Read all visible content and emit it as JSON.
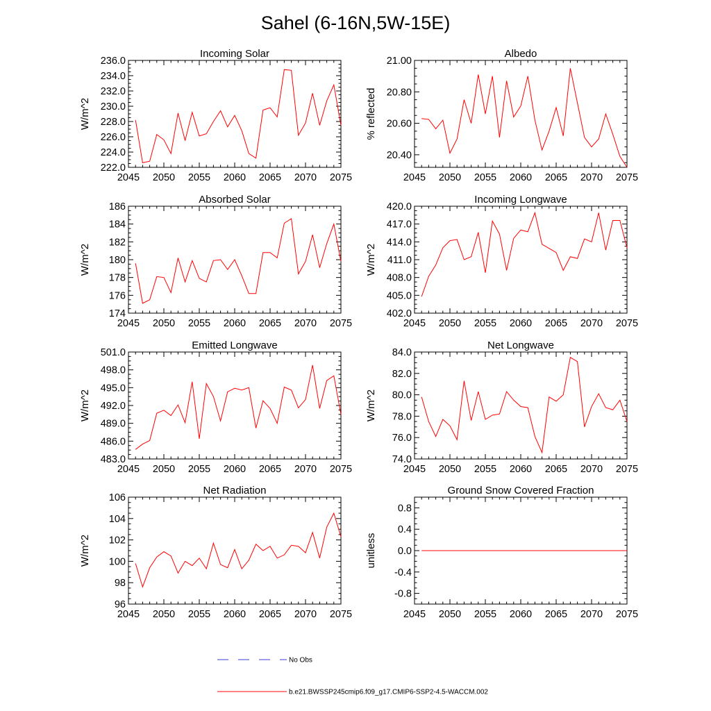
{
  "title": "Sahel (6-16N,5W-15E)",
  "colors": {
    "model": "#ff0000",
    "obs": "#3b3bd6",
    "axis": "#000000"
  },
  "legend": {
    "obs_label": "No Obs",
    "model_label": "b.e21.BWSSP245cmip6.f09_g17.CMIP6-SSP2-4.5-WACCM.002"
  },
  "chart_data": [
    {
      "type": "line",
      "title": "Incoming Solar",
      "ylabel": "W/m^2",
      "xlim": [
        2045,
        2075
      ],
      "ylim": [
        222,
        236
      ],
      "xticks": [
        2045,
        2050,
        2055,
        2060,
        2065,
        2070,
        2075
      ],
      "yticks": [
        222,
        224,
        226,
        228,
        230,
        232,
        234,
        236
      ],
      "ydecimals": 1,
      "ytick_labels": [
        "222.0",
        "224.0",
        "226.0",
        "228.0",
        "230.0",
        "232.0",
        "234.0",
        "236.0"
      ],
      "xtick_labels": [
        "2045",
        "2050",
        "2055",
        "2060",
        "2065",
        "2070",
        "2075"
      ],
      "series": [
        {
          "name": "b.e21.BWSSP245cmip6.f09_g17.CMIP6-SSP2-4.5-WACCM.002",
          "x": [
            2046,
            2047,
            2048,
            2049,
            2050,
            2051,
            2052,
            2053,
            2054,
            2055,
            2056,
            2057,
            2058,
            2059,
            2060,
            2061,
            2062,
            2063,
            2064,
            2065,
            2066,
            2067,
            2068,
            2069,
            2070,
            2071,
            2072,
            2073,
            2074,
            2075
          ],
          "values": [
            228.2,
            222.6,
            222.8,
            226.3,
            225.6,
            223.8,
            229.1,
            225.5,
            229.2,
            226.1,
            226.4,
            228.0,
            229.4,
            227.3,
            228.8,
            226.8,
            223.8,
            223.2,
            229.5,
            229.8,
            228.6,
            234.8,
            234.7,
            226.2,
            227.8,
            231.7,
            227.5,
            230.7,
            232.8,
            227.5
          ]
        }
      ]
    },
    {
      "type": "line",
      "title": "Albedo",
      "ylabel": "% reflected",
      "xlim": [
        2045,
        2075
      ],
      "ylim": [
        20.32,
        21.0
      ],
      "xticks": [
        2045,
        2050,
        2055,
        2060,
        2065,
        2070,
        2075
      ],
      "yticks": [
        20.4,
        20.6,
        20.8,
        21.0
      ],
      "ydecimals": 2,
      "ytick_labels": [
        "20.40",
        "20.60",
        "20.80",
        "21.00"
      ],
      "xtick_labels": [
        "2045",
        "2050",
        "2055",
        "2060",
        "2065",
        "2070",
        "2075"
      ],
      "series": [
        {
          "name": "b.e21.BWSSP245cmip6.f09_g17.CMIP6-SSP2-4.5-WACCM.002",
          "x": [
            2046,
            2047,
            2048,
            2049,
            2050,
            2051,
            2052,
            2053,
            2054,
            2055,
            2056,
            2057,
            2058,
            2059,
            2060,
            2061,
            2062,
            2063,
            2064,
            2065,
            2066,
            2067,
            2068,
            2069,
            2070,
            2071,
            2072,
            2073,
            2074,
            2075
          ],
          "values": [
            20.63,
            20.625,
            20.565,
            20.62,
            20.41,
            20.5,
            20.75,
            20.6,
            20.91,
            20.66,
            20.9,
            20.51,
            20.87,
            20.64,
            20.71,
            20.9,
            20.62,
            20.43,
            20.55,
            20.7,
            20.52,
            20.95,
            20.73,
            20.51,
            20.45,
            20.5,
            20.66,
            20.53,
            20.39,
            20.32
          ]
        }
      ]
    },
    {
      "type": "line",
      "title": "Absorbed Solar",
      "ylabel": "W/m^2",
      "xlim": [
        2045,
        2075
      ],
      "ylim": [
        174,
        186
      ],
      "xticks": [
        2045,
        2050,
        2055,
        2060,
        2065,
        2070,
        2075
      ],
      "yticks": [
        174,
        176,
        178,
        180,
        182,
        184,
        186
      ],
      "ydecimals": 0,
      "ytick_labels": [
        "174",
        "176",
        "178",
        "180",
        "182",
        "184",
        "186"
      ],
      "xtick_labels": [
        "2045",
        "2050",
        "2055",
        "2060",
        "2065",
        "2070",
        "2075"
      ],
      "series": [
        {
          "name": "b.e21.BWSSP245cmip6.f09_g17.CMIP6-SSP2-4.5-WACCM.002",
          "x": [
            2046,
            2047,
            2048,
            2049,
            2050,
            2051,
            2052,
            2053,
            2054,
            2055,
            2056,
            2057,
            2058,
            2059,
            2060,
            2061,
            2062,
            2063,
            2064,
            2065,
            2066,
            2067,
            2068,
            2069,
            2070,
            2071,
            2072,
            2073,
            2074,
            2075
          ],
          "values": [
            179.6,
            175.1,
            175.5,
            178.1,
            178.0,
            176.3,
            180.2,
            177.5,
            179.9,
            177.9,
            177.5,
            179.9,
            180.0,
            178.9,
            180.0,
            178.2,
            176.2,
            176.2,
            180.8,
            180.8,
            180.2,
            184.1,
            184.6,
            178.4,
            179.8,
            182.8,
            179.1,
            181.8,
            184.0,
            179.8
          ]
        }
      ]
    },
    {
      "type": "line",
      "title": "Incoming Longwave",
      "ylabel": "W/m^2",
      "xlim": [
        2045,
        2075
      ],
      "ylim": [
        402,
        420
      ],
      "xticks": [
        2045,
        2050,
        2055,
        2060,
        2065,
        2070,
        2075
      ],
      "yticks": [
        402,
        405,
        408,
        411,
        414,
        417,
        420
      ],
      "ydecimals": 1,
      "ytick_labels": [
        "402.0",
        "405.0",
        "408.0",
        "411.0",
        "414.0",
        "417.0",
        "420.0"
      ],
      "xtick_labels": [
        "2045",
        "2050",
        "2055",
        "2060",
        "2065",
        "2070",
        "2075"
      ],
      "series": [
        {
          "name": "b.e21.BWSSP245cmip6.f09_g17.CMIP6-SSP2-4.5-WACCM.002",
          "x": [
            2046,
            2047,
            2048,
            2049,
            2050,
            2051,
            2052,
            2053,
            2054,
            2055,
            2056,
            2057,
            2058,
            2059,
            2060,
            2061,
            2062,
            2063,
            2064,
            2065,
            2066,
            2067,
            2068,
            2069,
            2070,
            2071,
            2072,
            2073,
            2074,
            2075
          ],
          "values": [
            404.8,
            408.2,
            410.1,
            413.0,
            414.2,
            414.4,
            411.0,
            411.5,
            415.6,
            408.8,
            417.5,
            415.3,
            409.2,
            414.6,
            416.0,
            415.7,
            418.9,
            413.6,
            412.9,
            412.2,
            409.2,
            411.5,
            411.2,
            414.5,
            414.0,
            418.9,
            412.6,
            417.6,
            417.6,
            413.0
          ]
        }
      ]
    },
    {
      "type": "line",
      "title": "Emitted Longwave",
      "ylabel": "W/m^2",
      "xlim": [
        2045,
        2075
      ],
      "ylim": [
        483,
        501
      ],
      "xticks": [
        2045,
        2050,
        2055,
        2060,
        2065,
        2070,
        2075
      ],
      "yticks": [
        483,
        486,
        489,
        492,
        495,
        498,
        501
      ],
      "ydecimals": 1,
      "ytick_labels": [
        "483.0",
        "486.0",
        "489.0",
        "492.0",
        "495.0",
        "498.0",
        "501.0"
      ],
      "xtick_labels": [
        "2045",
        "2050",
        "2055",
        "2060",
        "2065",
        "2070",
        "2075"
      ],
      "series": [
        {
          "name": "b.e21.BWSSP245cmip6.f09_g17.CMIP6-SSP2-4.5-WACCM.002",
          "x": [
            2046,
            2047,
            2048,
            2049,
            2050,
            2051,
            2052,
            2053,
            2054,
            2055,
            2056,
            2057,
            2058,
            2059,
            2060,
            2061,
            2062,
            2063,
            2064,
            2065,
            2066,
            2067,
            2068,
            2069,
            2070,
            2071,
            2072,
            2073,
            2074,
            2075
          ],
          "values": [
            484.6,
            485.5,
            486.1,
            490.7,
            491.2,
            490.3,
            492.1,
            489.1,
            496.0,
            486.4,
            495.7,
            493.5,
            489.4,
            494.3,
            494.9,
            494.6,
            495.0,
            488.2,
            492.8,
            491.5,
            489.0,
            495.1,
            494.6,
            491.6,
            493.0,
            498.8,
            491.5,
            496.2,
            497.0,
            490.5
          ]
        }
      ]
    },
    {
      "type": "line",
      "title": "Net Longwave",
      "ylabel": "W/m^2",
      "xlim": [
        2045,
        2075
      ],
      "ylim": [
        74,
        84
      ],
      "xticks": [
        2045,
        2050,
        2055,
        2060,
        2065,
        2070,
        2075
      ],
      "yticks": [
        74,
        76,
        78,
        80,
        82,
        84
      ],
      "ydecimals": 1,
      "ytick_labels": [
        "74.0",
        "76.0",
        "78.0",
        "80.0",
        "82.0",
        "84.0"
      ],
      "xtick_labels": [
        "2045",
        "2050",
        "2055",
        "2060",
        "2065",
        "2070",
        "2075"
      ],
      "series": [
        {
          "name": "b.e21.BWSSP245cmip6.f09_g17.CMIP6-SSP2-4.5-WACCM.002",
          "x": [
            2046,
            2047,
            2048,
            2049,
            2050,
            2051,
            2052,
            2053,
            2054,
            2055,
            2056,
            2057,
            2058,
            2059,
            2060,
            2061,
            2062,
            2063,
            2064,
            2065,
            2066,
            2067,
            2068,
            2069,
            2070,
            2071,
            2072,
            2073,
            2074,
            2075
          ],
          "values": [
            79.8,
            77.5,
            76.1,
            77.7,
            77.1,
            75.8,
            81.3,
            77.6,
            80.3,
            77.7,
            78.1,
            78.2,
            80.3,
            79.5,
            78.9,
            78.8,
            76.1,
            74.6,
            79.8,
            79.4,
            80.0,
            83.5,
            83.1,
            77.0,
            78.9,
            80.1,
            78.8,
            78.6,
            79.5,
            77.5
          ]
        }
      ]
    },
    {
      "type": "line",
      "title": "Net Radiation",
      "ylabel": "W/m^2",
      "xlim": [
        2045,
        2075
      ],
      "ylim": [
        96,
        106
      ],
      "xticks": [
        2045,
        2050,
        2055,
        2060,
        2065,
        2070,
        2075
      ],
      "yticks": [
        96,
        98,
        100,
        102,
        104,
        106
      ],
      "ydecimals": 0,
      "ytick_labels": [
        "96",
        "98",
        "100",
        "102",
        "104",
        "106"
      ],
      "xtick_labels": [
        "2045",
        "2050",
        "2055",
        "2060",
        "2065",
        "2070",
        "2075"
      ],
      "series": [
        {
          "name": "b.e21.BWSSP245cmip6.f09_g17.CMIP6-SSP2-4.5-WACCM.002",
          "x": [
            2046,
            2047,
            2048,
            2049,
            2050,
            2051,
            2052,
            2053,
            2054,
            2055,
            2056,
            2057,
            2058,
            2059,
            2060,
            2061,
            2062,
            2063,
            2064,
            2065,
            2066,
            2067,
            2068,
            2069,
            2070,
            2071,
            2072,
            2073,
            2074,
            2075
          ],
          "values": [
            99.8,
            97.6,
            99.4,
            100.4,
            100.9,
            100.5,
            98.9,
            100.0,
            99.6,
            100.3,
            99.3,
            101.7,
            99.7,
            99.4,
            101.1,
            99.3,
            100.1,
            101.6,
            101.0,
            101.4,
            100.3,
            100.6,
            101.5,
            101.4,
            100.8,
            102.7,
            100.3,
            103.2,
            104.5,
            102.3
          ]
        }
      ]
    },
    {
      "type": "line",
      "title": "Ground Snow Covered Fraction",
      "ylabel": "unitless",
      "xlim": [
        2045,
        2075
      ],
      "ylim": [
        -1.0,
        1.0
      ],
      "xticks": [
        2045,
        2050,
        2055,
        2060,
        2065,
        2070,
        2075
      ],
      "yticks": [
        -0.8,
        -0.4,
        0.0,
        0.4,
        0.8
      ],
      "ydecimals": 1,
      "ytick_labels": [
        "-0.8",
        "-0.4",
        "0.0",
        "0.4",
        "0.8"
      ],
      "xtick_labels": [
        "2045",
        "2050",
        "2055",
        "2060",
        "2065",
        "2070",
        "2075"
      ],
      "series": [
        {
          "name": "b.e21.BWSSP245cmip6.f09_g17.CMIP6-SSP2-4.5-WACCM.002",
          "x": [
            2046,
            2047,
            2048,
            2049,
            2050,
            2051,
            2052,
            2053,
            2054,
            2055,
            2056,
            2057,
            2058,
            2059,
            2060,
            2061,
            2062,
            2063,
            2064,
            2065,
            2066,
            2067,
            2068,
            2069,
            2070,
            2071,
            2072,
            2073,
            2074,
            2075
          ],
          "values": [
            0,
            0,
            0,
            0,
            0,
            0,
            0,
            0,
            0,
            0,
            0,
            0,
            0,
            0,
            0,
            0,
            0,
            0,
            0,
            0,
            0,
            0,
            0,
            0,
            0,
            0,
            0,
            0,
            0,
            0
          ]
        }
      ]
    }
  ]
}
